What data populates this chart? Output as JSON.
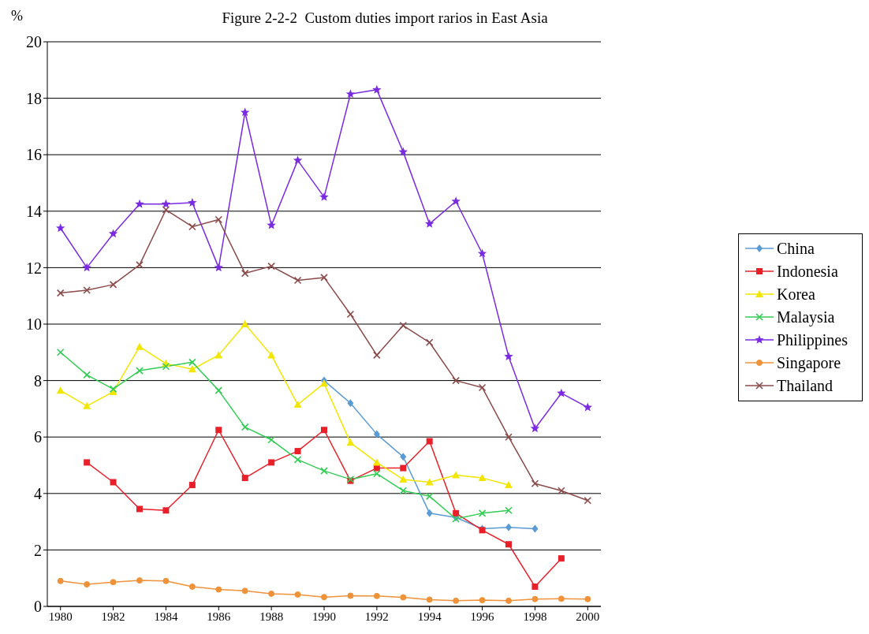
{
  "chart_data": {
    "type": "line",
    "title": "Figure 2-2-2  Custom duties import rarios in East Asia",
    "ylabel": "%",
    "x": [
      1980,
      1981,
      1982,
      1983,
      1984,
      1985,
      1986,
      1987,
      1988,
      1989,
      1990,
      1991,
      1992,
      1993,
      1994,
      1995,
      1996,
      1997,
      1998,
      1999,
      2000
    ],
    "xlim": [
      1979.5,
      2000.5
    ],
    "xticks": [
      1980,
      1982,
      1984,
      1986,
      1988,
      1990,
      1992,
      1994,
      1996,
      1998,
      2000
    ],
    "ylim": [
      0,
      20
    ],
    "yticks": [
      0,
      2,
      4,
      6,
      8,
      10,
      12,
      14,
      16,
      18,
      20
    ],
    "grid": "y",
    "legend": "right",
    "line_style": "solid",
    "series": [
      {
        "name": "China",
        "color": "#5b9bd5",
        "marker": "diamond",
        "values": [
          null,
          null,
          null,
          null,
          null,
          null,
          null,
          null,
          null,
          null,
          8.0,
          7.2,
          6.1,
          5.3,
          3.3,
          3.15,
          2.75,
          2.8,
          2.75,
          null,
          null
        ]
      },
      {
        "name": "Indonesia",
        "color": "#e8202a",
        "marker": "square",
        "values": [
          null,
          5.1,
          4.4,
          3.45,
          3.4,
          4.3,
          6.25,
          4.55,
          5.1,
          5.5,
          6.25,
          4.45,
          4.9,
          4.9,
          5.85,
          3.3,
          2.7,
          2.2,
          0.7,
          1.7,
          null
        ]
      },
      {
        "name": "Korea",
        "color": "#f2e600",
        "marker": "triangle",
        "values": [
          7.65,
          7.1,
          7.6,
          9.2,
          8.6,
          8.4,
          8.9,
          10.0,
          8.9,
          7.15,
          7.9,
          5.8,
          5.1,
          4.5,
          4.4,
          4.65,
          4.55,
          4.3,
          null,
          null,
          null
        ]
      },
      {
        "name": "Malaysia",
        "color": "#33cc55",
        "marker": "cross",
        "values": [
          9.0,
          8.2,
          7.7,
          8.35,
          8.5,
          8.65,
          7.65,
          6.35,
          5.9,
          5.2,
          4.8,
          4.5,
          4.7,
          4.1,
          3.9,
          3.1,
          3.3,
          3.4,
          null,
          null,
          null
        ]
      },
      {
        "name": "Philippines",
        "color": "#7a2be2",
        "marker": "star",
        "values": [
          13.4,
          12.0,
          13.2,
          14.25,
          14.25,
          14.3,
          12.0,
          17.5,
          13.5,
          15.8,
          14.5,
          18.15,
          18.3,
          16.1,
          13.55,
          14.35,
          12.5,
          8.85,
          6.3,
          7.55,
          7.05
        ]
      },
      {
        "name": "Singapore",
        "color": "#f0923a",
        "marker": "circle",
        "values": [
          0.9,
          0.78,
          0.86,
          0.92,
          0.9,
          0.7,
          0.6,
          0.55,
          0.45,
          0.42,
          0.33,
          0.38,
          0.37,
          0.32,
          0.24,
          0.2,
          0.22,
          0.2,
          0.26,
          0.27,
          0.26
        ]
      },
      {
        "name": "Thailand",
        "color": "#8b4a4a",
        "marker": "cross",
        "values": [
          11.1,
          11.2,
          11.4,
          12.1,
          14.05,
          13.45,
          13.7,
          11.8,
          12.05,
          11.55,
          11.65,
          10.35,
          8.9,
          9.95,
          9.35,
          8.0,
          7.75,
          6.0,
          4.35,
          4.1,
          3.75
        ]
      }
    ]
  }
}
